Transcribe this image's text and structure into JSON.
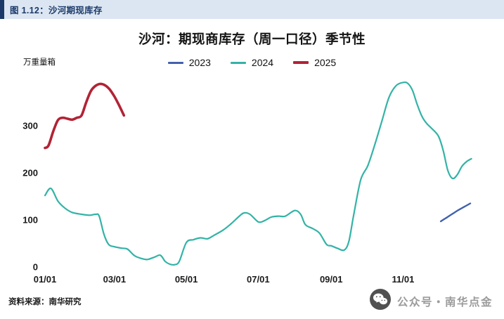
{
  "header": {
    "figure_label": "图 1.12：沙河期现库存"
  },
  "footer": {
    "source": "资料来源：南华研究"
  },
  "watermark": {
    "icon": "wechat-icon",
    "text": "公众号・南华点金"
  },
  "colors": {
    "header_bg": "#dce6f2",
    "header_accent": "#1b3a69",
    "series_2023": "#4161ad",
    "series_2024": "#33b3a6",
    "series_2025": "#b22335"
  },
  "chart_data": {
    "type": "line",
    "title": "沙河：期现商库存（周一口径）季节性",
    "ylabel": "万重量箱",
    "xlabel": "",
    "ylim": [
      0,
      400
    ],
    "yticks": [
      0,
      100,
      200,
      300
    ],
    "xticks": [
      "01/01",
      "03/01",
      "05/01",
      "07/01",
      "09/01",
      "11/01"
    ],
    "xtick_days": [
      1,
      60,
      121,
      182,
      244,
      305
    ],
    "grid": false,
    "legend_position": "top-center",
    "series": [
      {
        "name": "2023",
        "color": "#4161ad",
        "line_width": 2.4,
        "days": [
          337,
          342,
          347,
          352,
          357,
          362
        ],
        "values": [
          97,
          105,
          113,
          121,
          128,
          135
        ]
      },
      {
        "name": "2024",
        "color": "#33b3a6",
        "line_width": 2.2,
        "days": [
          1,
          6,
          12,
          18,
          24,
          32,
          39,
          44,
          47,
          51,
          55,
          60,
          66,
          71,
          77,
          83,
          88,
          94,
          99,
          103,
          107,
          111,
          115,
          121,
          127,
          133,
          139,
          145,
          152,
          159,
          166,
          170,
          175,
          182,
          187,
          193,
          199,
          205,
          213,
          218,
          222,
          228,
          234,
          240,
          244,
          249,
          255,
          259,
          263,
          269,
          275,
          281,
          287,
          293,
          299,
          305,
          309,
          313,
          317,
          321,
          325,
          329,
          335,
          339,
          343,
          347,
          351,
          355,
          359,
          363
        ],
        "values": [
          152,
          167,
          140,
          125,
          116,
          112,
          110,
          112,
          108,
          70,
          48,
          43,
          40,
          38,
          24,
          18,
          16,
          21,
          25,
          12,
          6,
          5,
          12,
          52,
          58,
          62,
          60,
          68,
          78,
          92,
          108,
          115,
          112,
          96,
          98,
          106,
          108,
          108,
          120,
          112,
          90,
          82,
          72,
          48,
          45,
          40,
          36,
          55,
          110,
          185,
          215,
          260,
          310,
          360,
          385,
          392,
          390,
          375,
          345,
          320,
          305,
          295,
          278,
          248,
          205,
          188,
          196,
          214,
          224,
          230
        ]
      },
      {
        "name": "2025",
        "color": "#b22335",
        "line_width": 3.6,
        "days": [
          1,
          4,
          8,
          12,
          16,
          20,
          24,
          28,
          32,
          36,
          40,
          44,
          48,
          52,
          56,
          60,
          64,
          68
        ],
        "values": [
          253,
          258,
          288,
          312,
          317,
          315,
          313,
          317,
          322,
          350,
          374,
          385,
          389,
          386,
          377,
          362,
          343,
          322
        ]
      }
    ]
  }
}
